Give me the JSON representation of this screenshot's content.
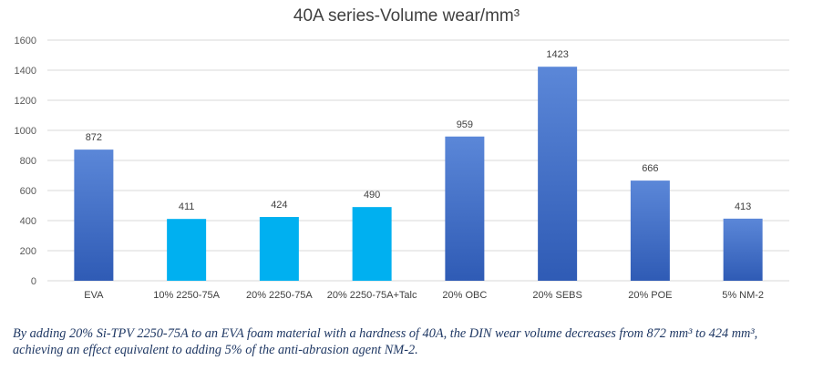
{
  "chart_data": {
    "type": "bar",
    "title": "40A series-Volume wear/mm³",
    "xlabel": "",
    "ylabel": "",
    "ylim": [
      0,
      1600
    ],
    "yticks": [
      0,
      200,
      400,
      600,
      800,
      1000,
      1200,
      1400,
      1600
    ],
    "grid": true,
    "categories": [
      "EVA",
      "10% 2250-75A",
      "20% 2250-75A",
      "20% 2250-75A+Talc",
      "20% OBC",
      "20% SEBS",
      "20% POE",
      "5% NM-2"
    ],
    "values": [
      872,
      411,
      424,
      490,
      959,
      1423,
      666,
      413
    ],
    "bar_styles": [
      "blue-gradient",
      "cyan",
      "cyan",
      "cyan",
      "blue-gradient",
      "blue-gradient",
      "blue-gradient",
      "blue-gradient"
    ],
    "colors": {
      "blue_top": "#5b87d8",
      "blue_bottom": "#2f5bb5",
      "cyan": "#00b0f0",
      "grid": "#d9d9d9"
    }
  },
  "caption": "By adding 20% Si-TPV 2250-75A to an EVA foam material with a hardness of 40A, the DIN wear volume decreases from 872 mm³ to 424 mm³, achieving an effect equivalent to adding 5% of the anti-abrasion agent NM-2."
}
